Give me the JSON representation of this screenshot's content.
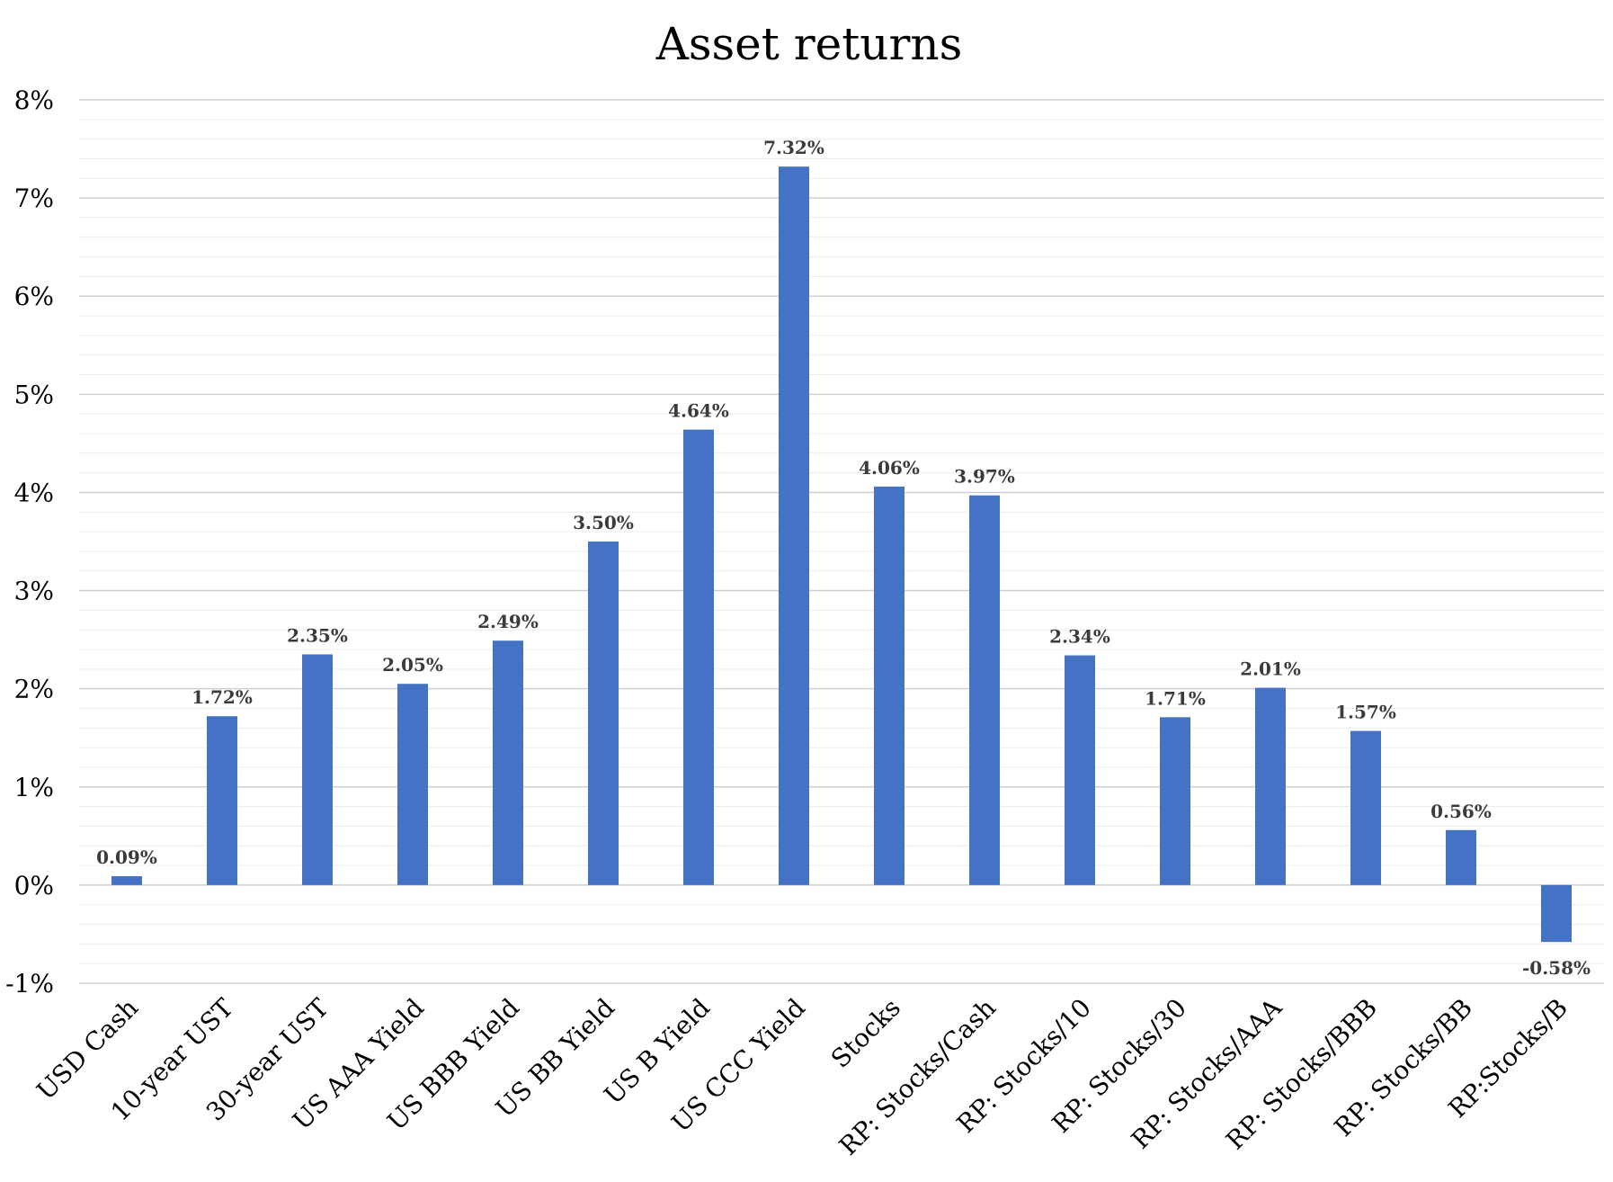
{
  "chart_data": {
    "type": "bar",
    "title": "Asset returns",
    "xlabel": "",
    "ylabel": "",
    "ylim": [
      -1,
      8
    ],
    "y_ticks": [
      "-1%",
      "0%",
      "1%",
      "2%",
      "3%",
      "4%",
      "5%",
      "6%",
      "7%",
      "8%"
    ],
    "grid": true,
    "legend": "none",
    "bar_color": "#4472c4",
    "categories": [
      "USD Cash",
      "10-year UST",
      "30-year UST",
      "US AAA Yield",
      "US BBB Yield",
      "US BB Yield",
      "US B Yield",
      "US CCC Yield",
      "Stocks",
      "RP: Stocks/Cash",
      "RP: Stocks/10",
      "RP: Stocks/30",
      "RP: Stocks/AAA",
      "RP: Stocks/BBB",
      "RP: Stocks/BB",
      "RP:Stocks/B"
    ],
    "values": [
      0.09,
      1.72,
      2.35,
      2.05,
      2.49,
      3.5,
      4.64,
      7.32,
      4.06,
      3.97,
      2.34,
      1.71,
      2.01,
      1.57,
      0.56,
      -0.58
    ],
    "data_labels": [
      "0.09%",
      "1.72%",
      "2.35%",
      "2.05%",
      "2.49%",
      "3.50%",
      "4.64%",
      "7.32%",
      "4.06%",
      "3.97%",
      "2.34%",
      "1.71%",
      "2.01%",
      "1.57%",
      "0.56%",
      "-0.58%"
    ]
  }
}
